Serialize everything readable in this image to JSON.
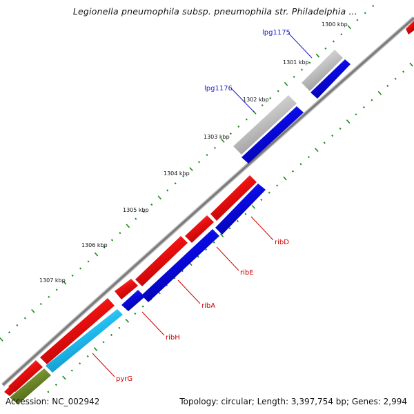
{
  "title": "Legionella pneumophila subsp. pneumophila str. Philadelphia ...",
  "footer": {
    "accession": "Accession: NC_002942",
    "summary": "Topology: circular; Length: 3,397,754 bp; Genes: 2,994"
  },
  "colors": {
    "backbone": "#8a8a8a",
    "tick": "#1a8a1a",
    "gene_red": "#ee1111",
    "gene_blue": "#0a0ae6",
    "gene_grey": "#c4c4c4",
    "gene_cyan": "#22bdf0",
    "gene_olive": "#6e8a2a",
    "label_red": "#cc0000",
    "label_blue": "#1a1acc",
    "kbp_text": "#111111"
  },
  "kbp_ticks": [
    "1300 kbp",
    "1301 kbp",
    "1302 kbp",
    "1303 kbp",
    "1304 kbp",
    "1305 kbp",
    "1306 kbp",
    "1307 kbp"
  ],
  "genes": [
    {
      "name": "lpg1175",
      "strand": "+",
      "color": "gene_blue",
      "label_color": "label_blue"
    },
    {
      "name": "lpg1176",
      "strand": "+",
      "color": "gene_blue",
      "label_color": "label_blue"
    },
    {
      "name": "ribD",
      "strand": "+",
      "color": "gene_blue",
      "label_color": "label_red"
    },
    {
      "name": "ribE",
      "strand": "+",
      "color": "gene_blue",
      "label_color": "label_red"
    },
    {
      "name": "ribA",
      "strand": "+",
      "color": "gene_blue",
      "label_color": "label_red"
    },
    {
      "name": "ribH",
      "strand": "+",
      "color": "gene_blue",
      "label_color": "label_red"
    },
    {
      "name": "pyrG",
      "strand": "+",
      "color": "gene_cyan",
      "label_color": "label_red"
    }
  ]
}
